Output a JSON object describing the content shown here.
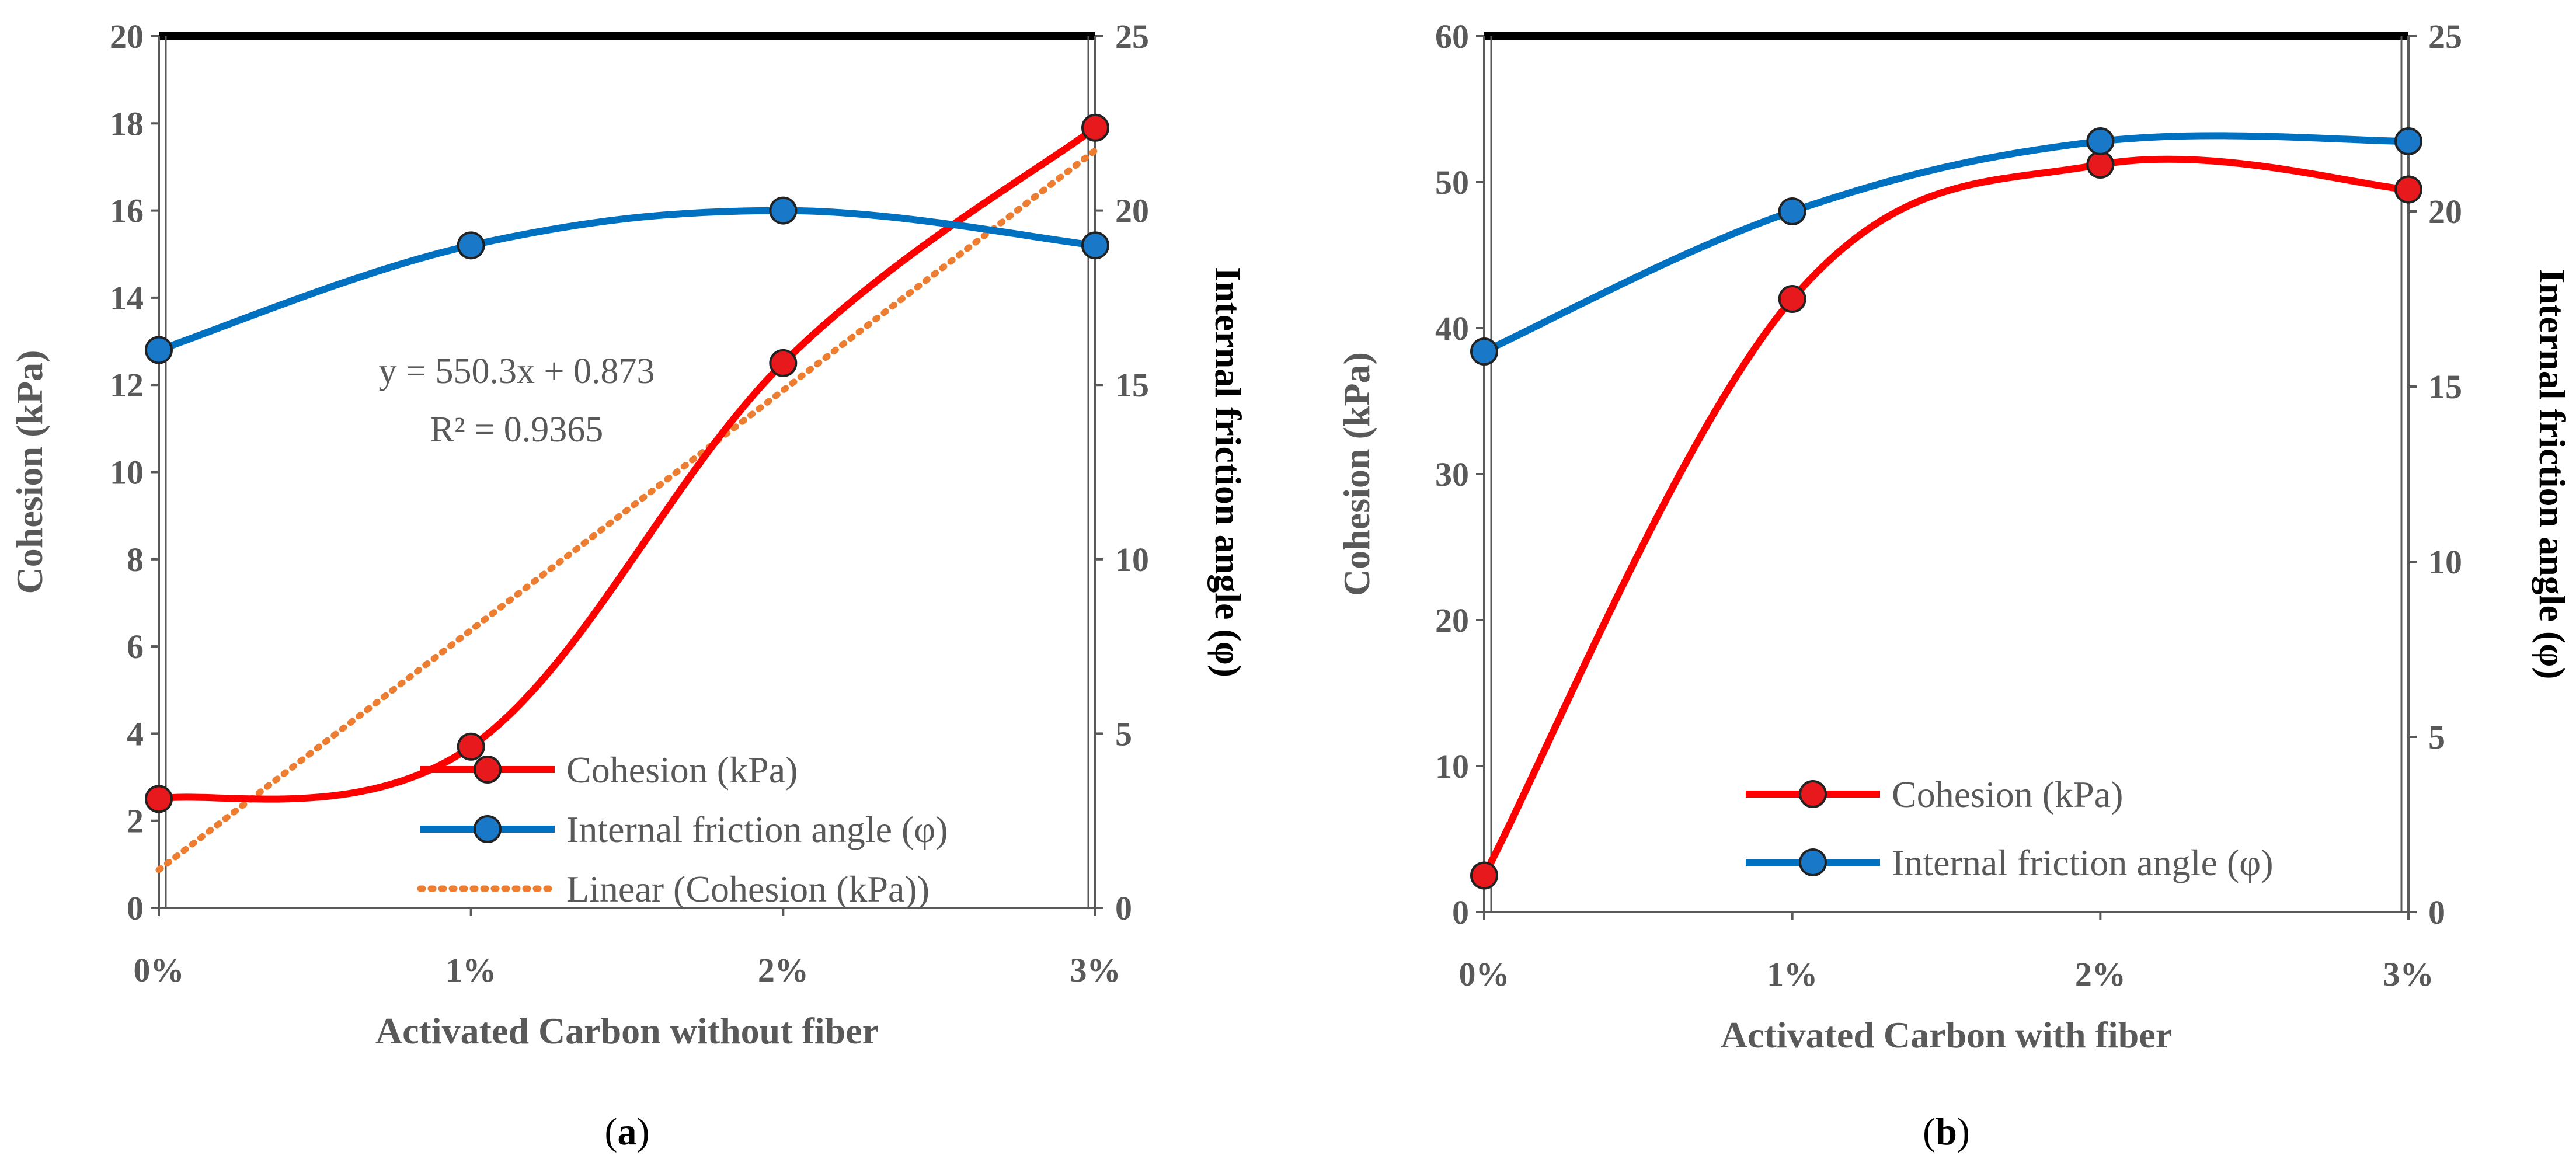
{
  "colors": {
    "cohesion": "#ff0000",
    "cohesion_marker": "#e8191c",
    "friction": "#0070c0",
    "friction_marker": "#1a78c8",
    "trend": "#ed7d31",
    "axis": "#595959",
    "frame_top": "#000000"
  },
  "chart_data": [
    {
      "type": "line",
      "panel_label": "a",
      "xlabel": "Activated Carbon without fiber",
      "ylabel": "Cohesion (kPa)",
      "y2label": "Internal friction angle (φ)",
      "categories": [
        "0%",
        "1%",
        "2%",
        "3%"
      ],
      "ylim": [
        0,
        20
      ],
      "yticks": [
        0,
        2,
        4,
        6,
        8,
        10,
        12,
        14,
        16,
        18,
        20
      ],
      "y2lim": [
        0,
        25
      ],
      "y2ticks": [
        0,
        5,
        10,
        15,
        20,
        25
      ],
      "series": [
        {
          "name": "Cohesion (kPa)",
          "axis": "left",
          "values": [
            2.5,
            3.7,
            12.5,
            17.9
          ]
        },
        {
          "name": "Internal friction angle (φ)",
          "axis": "right",
          "values": [
            16,
            19,
            20,
            19
          ]
        }
      ],
      "trendline": {
        "name": "Linear (Cohesion (kPa))",
        "equation": "y = 550.3x + 0.873",
        "r2": "R² = 0.9365",
        "start": 0.873,
        "end": 17.38
      },
      "legend_position": "bottom-right"
    },
    {
      "type": "line",
      "panel_label": "b",
      "xlabel": "Activated Carbon with fiber",
      "ylabel": "Cohesion (kPa)",
      "y2label": "Internal friction angle (φ)",
      "categories": [
        "0%",
        "1%",
        "2%",
        "3%"
      ],
      "ylim": [
        0,
        60
      ],
      "yticks": [
        0,
        10,
        20,
        30,
        40,
        50,
        60
      ],
      "y2lim": [
        0,
        25
      ],
      "y2ticks": [
        0,
        5,
        10,
        15,
        20,
        25
      ],
      "series": [
        {
          "name": "Cohesion (kPa)",
          "axis": "left",
          "values": [
            2.5,
            42,
            51.2,
            49.5
          ]
        },
        {
          "name": "Internal friction angle (φ)",
          "axis": "right",
          "values": [
            16,
            20,
            22,
            22
          ]
        }
      ],
      "legend_position": "bottom-right"
    }
  ]
}
